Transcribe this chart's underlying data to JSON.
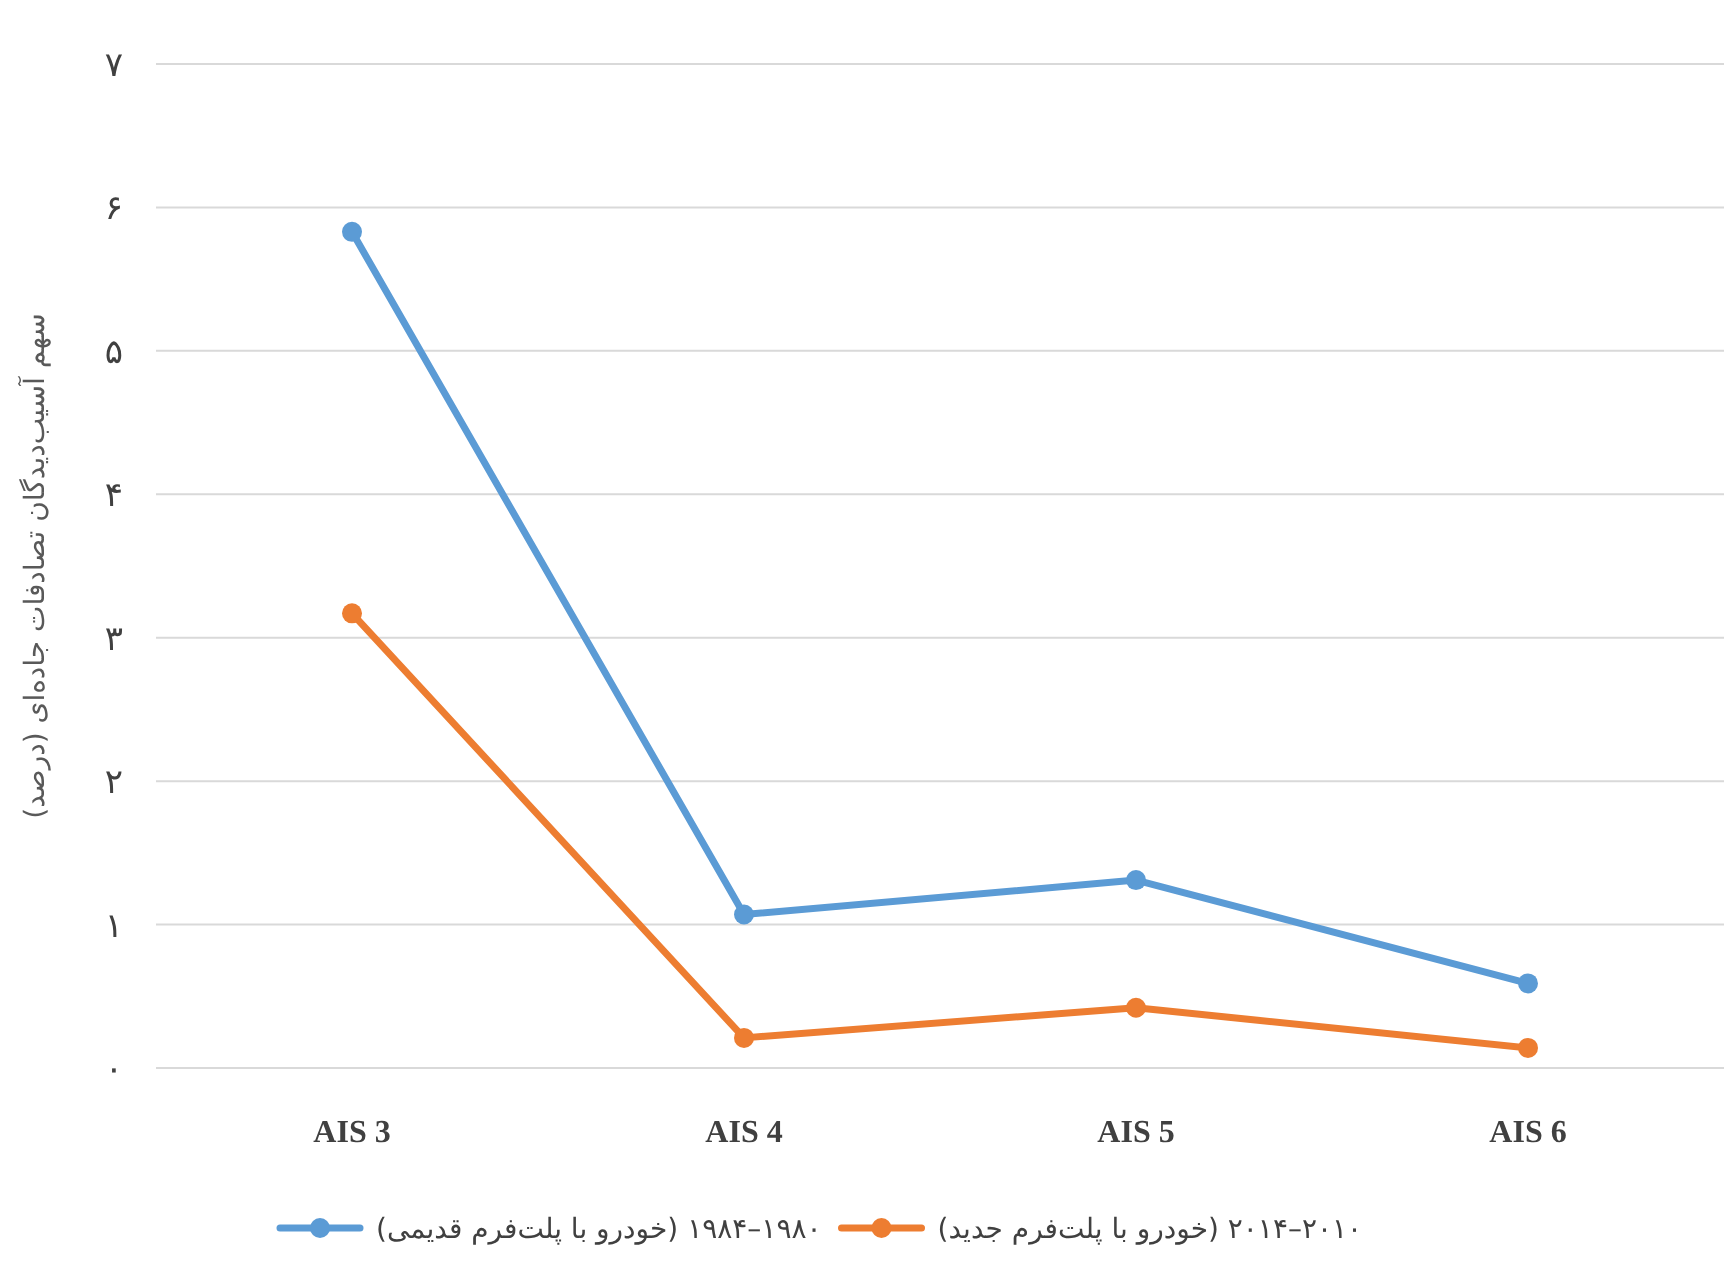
{
  "chart_data": {
    "type": "line",
    "ylabel": "سهم آسیب‌دیدگان تصادفات جاده‌ای (درصد)",
    "categories": [
      "AIS 3",
      "AIS 4",
      "AIS 5",
      "AIS 6"
    ],
    "series": [
      {
        "name": "۱۹۸۰–۱۹۸۴ (خودرو با پلت‌فرم قدیمی)",
        "color": "#5b9bd5",
        "values": [
          5.83,
          1.07,
          1.31,
          0.59
        ]
      },
      {
        "name": "۲۰۱۰–۲۰۱۴ (خودرو با پلت‌فرم جدید)",
        "color": "#ed7d31",
        "values": [
          3.17,
          0.21,
          0.42,
          0.14
        ]
      }
    ],
    "ylim": [
      0,
      7
    ],
    "yticks": [
      {
        "value": 0,
        "label": "۰"
      },
      {
        "value": 1,
        "label": "۱"
      },
      {
        "value": 2,
        "label": "۲"
      },
      {
        "value": 3,
        "label": "۳"
      },
      {
        "value": 4,
        "label": "۴"
      },
      {
        "value": 5,
        "label": "۵"
      },
      {
        "value": 6,
        "label": "۶"
      },
      {
        "value": 7,
        "label": "۷"
      }
    ],
    "grid": "y",
    "legend": "bottom",
    "marker": "circle",
    "line_style": "solid"
  }
}
